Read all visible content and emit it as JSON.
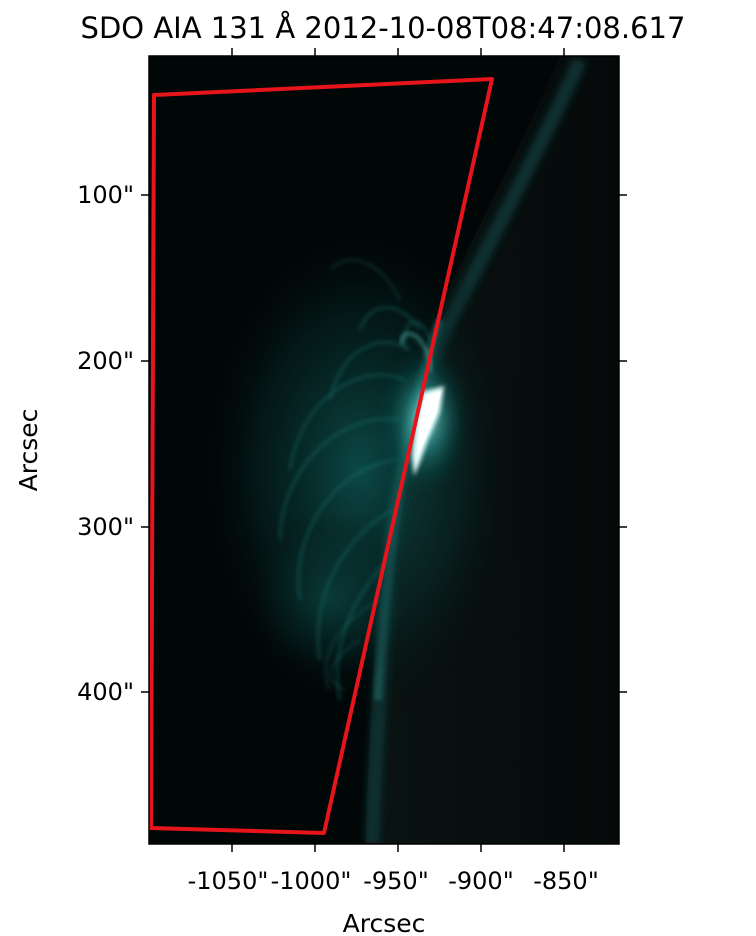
{
  "figure": {
    "title": "SDO AIA 131 Å 2012-10-08T08:47:08.617",
    "xlabel": "Arcsec",
    "ylabel": "Arcsec",
    "x_ticks": [
      "-1050\"",
      "-1000\"",
      "-950\"",
      "-900\"",
      "-850\""
    ],
    "y_ticks": [
      "100\"",
      "200\"",
      "300\"",
      "400\""
    ],
    "overlay_color": "#e8141b",
    "colormap": "sdoaia131"
  }
}
